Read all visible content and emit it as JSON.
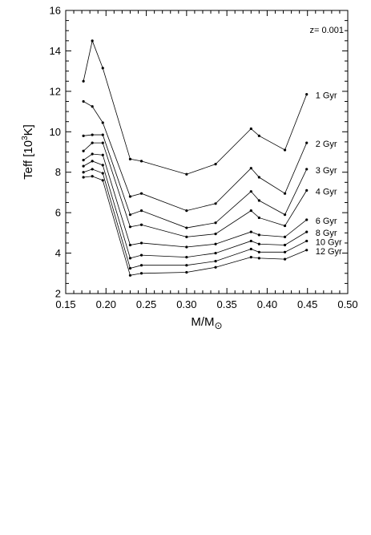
{
  "chart_data": {
    "type": "line",
    "xlabel": "M/M",
    "xlabel_symbol": "⊙",
    "ylabel_prefix": "Teff [10",
    "ylabel_sup": "3",
    "ylabel_suffix": "K]",
    "annotation": "z= 0.001",
    "xlim": [
      0.15,
      0.5
    ],
    "ylim": [
      2,
      16
    ],
    "xticks": [
      0.15,
      0.2,
      0.25,
      0.3,
      0.35,
      0.4,
      0.45,
      0.5
    ],
    "xtick_labels": [
      "0.15",
      "0.20",
      "0.25",
      "0.30",
      "0.35",
      "0.40",
      "0.45",
      "0.50"
    ],
    "yticks": [
      2,
      4,
      6,
      8,
      10,
      12,
      14,
      16
    ],
    "ytick_labels": [
      "2",
      "4",
      "6",
      "8",
      "10",
      "12",
      "14",
      "16"
    ],
    "grid": false,
    "x": [
      0.172,
      0.183,
      0.196,
      0.23,
      0.244,
      0.3,
      0.336,
      0.38,
      0.39,
      0.422,
      0.449
    ],
    "series": [
      {
        "name": "1 Gyr",
        "values": [
          12.5,
          14.5,
          13.15,
          8.65,
          8.55,
          7.9,
          8.4,
          10.15,
          9.8,
          9.1,
          11.85
        ]
      },
      {
        "name": "2 Gyr",
        "values": [
          11.5,
          11.25,
          10.45,
          6.8,
          6.95,
          6.1,
          6.45,
          8.2,
          7.75,
          6.95,
          9.45
        ]
      },
      {
        "name": "3 Gyr",
        "values": [
          9.8,
          9.85,
          9.85,
          5.9,
          6.1,
          5.25,
          5.5,
          7.05,
          6.6,
          5.9,
          8.15
        ]
      },
      {
        "name": "4 Gyr",
        "values": [
          9.05,
          9.45,
          9.45,
          5.3,
          5.4,
          4.8,
          4.95,
          6.1,
          5.75,
          5.35,
          7.1
        ]
      },
      {
        "name": "6 Gyr",
        "values": [
          8.6,
          8.9,
          8.85,
          4.4,
          4.5,
          4.3,
          4.45,
          5.05,
          4.9,
          4.8,
          5.65
        ]
      },
      {
        "name": "8 Gyr",
        "values": [
          8.3,
          8.55,
          8.35,
          3.75,
          3.9,
          3.8,
          4.0,
          4.6,
          4.45,
          4.4,
          5.05
        ]
      },
      {
        "name": "10 Gyr",
        "values": [
          8.0,
          8.15,
          7.95,
          3.25,
          3.4,
          3.4,
          3.6,
          4.2,
          4.05,
          4.05,
          4.6
        ]
      },
      {
        "name": "12 Gyr",
        "values": [
          7.75,
          7.8,
          7.6,
          2.9,
          3.0,
          3.05,
          3.3,
          3.8,
          3.75,
          3.7,
          4.15
        ]
      }
    ]
  }
}
